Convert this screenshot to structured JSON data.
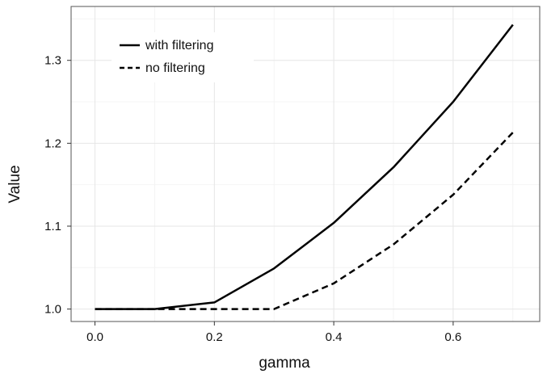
{
  "chart_data": {
    "type": "line",
    "title": "",
    "xlabel": "gamma",
    "ylabel": "Value",
    "xlim": [
      -0.04,
      0.745
    ],
    "ylim": [
      0.985,
      1.365
    ],
    "x_ticks": [
      0.0,
      0.2,
      0.4,
      0.6
    ],
    "x_tick_labels": [
      "0.0",
      "0.2",
      "0.4",
      "0.6"
    ],
    "y_ticks": [
      1.0,
      1.1,
      1.2,
      1.3
    ],
    "y_tick_labels": [
      "1.0",
      "1.1",
      "1.2",
      "1.3"
    ],
    "x": [
      0.0,
      0.1,
      0.2,
      0.3,
      0.4,
      0.5,
      0.6,
      0.7
    ],
    "series": [
      {
        "name": "with filtering",
        "style": "solid",
        "values": [
          1.0,
          1.0,
          1.008,
          1.049,
          1.104,
          1.171,
          1.25,
          1.343
        ]
      },
      {
        "name": "no filtering",
        "style": "dashed",
        "values": [
          1.0,
          1.0,
          1.0,
          1.0,
          1.031,
          1.078,
          1.138,
          1.213
        ]
      }
    ],
    "grid": true,
    "legend_position": "top-left",
    "colors": {
      "line": "#000000",
      "grid": "#e6e6e6",
      "minor_grid": "#f4f4f4",
      "frame": "#555555"
    }
  }
}
